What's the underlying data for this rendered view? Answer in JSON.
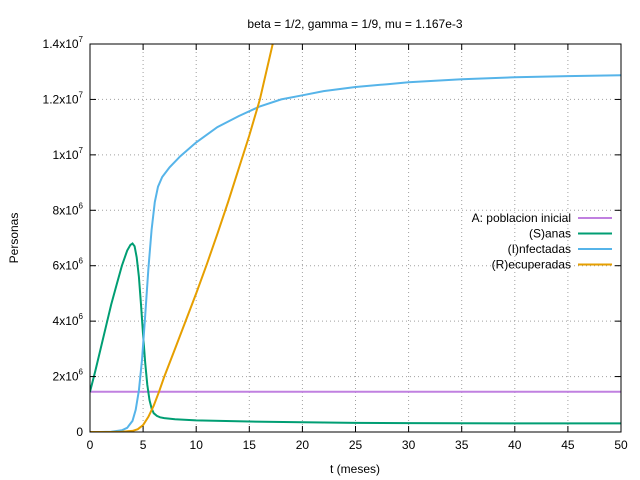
{
  "chart_data": {
    "type": "line",
    "title": "beta = 1/2, gamma = 1/9, mu = 1.167e-3",
    "xlabel": "t (meses)",
    "ylabel": "Personas",
    "xlim": [
      0,
      50
    ],
    "ylim": [
      0,
      14000000
    ],
    "grid": true,
    "legend_position": "right",
    "x_ticks": [
      {
        "value": 0,
        "label": "0"
      },
      {
        "value": 5,
        "label": "5"
      },
      {
        "value": 10,
        "label": "10"
      },
      {
        "value": 15,
        "label": "15"
      },
      {
        "value": 20,
        "label": "20"
      },
      {
        "value": 25,
        "label": "25"
      },
      {
        "value": 30,
        "label": "30"
      },
      {
        "value": 35,
        "label": "35"
      },
      {
        "value": 40,
        "label": "40"
      },
      {
        "value": 45,
        "label": "45"
      },
      {
        "value": 50,
        "label": "50"
      }
    ],
    "y_ticks": [
      {
        "value": 0,
        "base": "0",
        "exp": ""
      },
      {
        "value": 2000000,
        "base": "2x10",
        "exp": "6"
      },
      {
        "value": 4000000,
        "base": "4x10",
        "exp": "6"
      },
      {
        "value": 6000000,
        "base": "6x10",
        "exp": "6"
      },
      {
        "value": 8000000,
        "base": "8x10",
        "exp": "6"
      },
      {
        "value": 10000000,
        "base": "1x10",
        "exp": "7"
      },
      {
        "value": 12000000,
        "base": "1.2x10",
        "exp": "7"
      },
      {
        "value": 14000000,
        "base": "1.4x10",
        "exp": "7"
      }
    ],
    "series": [
      {
        "name": "A: poblacion inicial",
        "color": "#c080e0",
        "x": [
          0,
          50
        ],
        "y": [
          1450000,
          1450000
        ]
      },
      {
        "name": "(S)anas",
        "color": "#009e73",
        "x": [
          0,
          0.5,
          1,
          1.5,
          2,
          2.5,
          3,
          3.5,
          3.8,
          4.0,
          4.2,
          4.4,
          4.6,
          4.8,
          5.0,
          5.2,
          5.4,
          5.6,
          5.8,
          6.0,
          6.3,
          6.6,
          7,
          8,
          10,
          15,
          20,
          25,
          30,
          40,
          50
        ],
        "y": [
          1450000,
          2200000,
          3000000,
          3800000,
          4600000,
          5300000,
          6000000,
          6550000,
          6750000,
          6800000,
          6700000,
          6300000,
          5600000,
          4600000,
          3500000,
          2500000,
          1700000,
          1150000,
          850000,
          680000,
          580000,
          530000,
          500000,
          460000,
          420000,
          380000,
          350000,
          330000,
          320000,
          310000,
          310000
        ]
      },
      {
        "name": "(I)nfectadas",
        "color": "#56b4e9",
        "x": [
          0,
          1,
          2,
          3,
          3.5,
          4.0,
          4.3,
          4.6,
          4.9,
          5.2,
          5.5,
          5.8,
          6.1,
          6.4,
          6.8,
          7.5,
          8.5,
          10,
          12,
          14,
          16,
          18,
          20,
          22,
          25,
          28,
          30,
          35,
          40,
          45,
          50
        ],
        "y": [
          0,
          0,
          10000,
          60000,
          150000,
          400000,
          800000,
          1500000,
          2600000,
          4200000,
          5900000,
          7300000,
          8300000,
          8850000,
          9200000,
          9550000,
          9950000,
          10450000,
          11000000,
          11400000,
          11750000,
          12000000,
          12150000,
          12300000,
          12450000,
          12550000,
          12620000,
          12730000,
          12800000,
          12840000,
          12870000
        ]
      },
      {
        "name": "(R)ecuperadas",
        "color": "#e69f00",
        "x": [
          0,
          2,
          3,
          4,
          4.5,
          5.0,
          5.5,
          6.0,
          6.5,
          7.0,
          8,
          9,
          10,
          11,
          12,
          13,
          14,
          15,
          16,
          17.2
        ],
        "y": [
          0,
          0,
          10000,
          40000,
          100000,
          250000,
          550000,
          950000,
          1450000,
          2000000,
          3000000,
          4000000,
          5000000,
          6050000,
          7150000,
          8300000,
          9500000,
          10700000,
          12000000,
          14000000
        ]
      }
    ]
  }
}
